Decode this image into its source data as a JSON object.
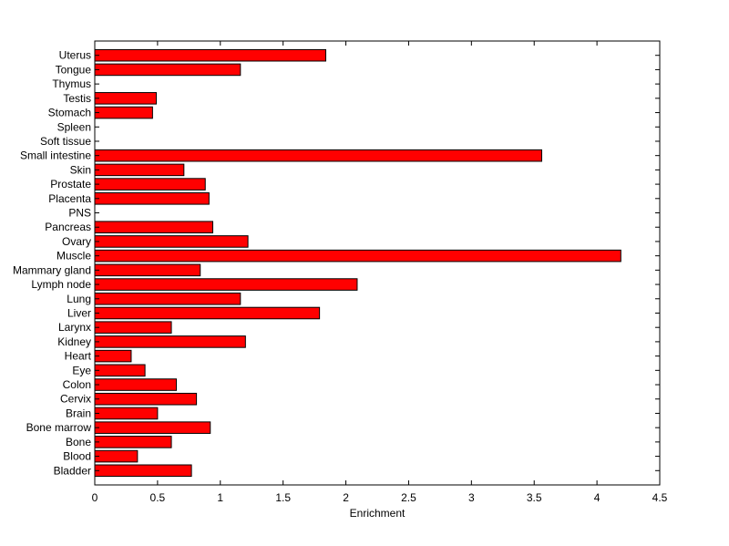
{
  "chart_data": {
    "type": "bar",
    "orientation": "horizontal",
    "title": "",
    "xlabel": "Enrichment",
    "ylabel": "",
    "xlim": [
      0,
      4.5
    ],
    "xticks": [
      "0",
      "0.5",
      "1",
      "1.5",
      "2",
      "2.5",
      "3",
      "3.5",
      "4",
      "4.5"
    ],
    "categories": [
      "Uterus",
      "Tongue",
      "Thymus",
      "Testis",
      "Stomach",
      "Spleen",
      "Soft tissue",
      "Small intestine",
      "Skin",
      "Prostate",
      "Placenta",
      "PNS",
      "Pancreas",
      "Ovary",
      "Muscle",
      "Mammary gland",
      "Lymph node",
      "Lung",
      "Liver",
      "Larynx",
      "Kidney",
      "Heart",
      "Eye",
      "Colon",
      "Cervix",
      "Brain",
      "Bone marrow",
      "Bone",
      "Blood",
      "Bladder"
    ],
    "values": [
      1.84,
      1.16,
      0,
      0.49,
      0.46,
      0,
      0,
      3.56,
      0.71,
      0.88,
      0.91,
      0,
      0.94,
      1.22,
      4.19,
      0.84,
      2.09,
      1.16,
      1.79,
      0.61,
      1.2,
      0.29,
      0.4,
      0.65,
      0.81,
      0.5,
      0.92,
      0.61,
      0.34,
      0.77
    ],
    "bar_color": "#ff0000",
    "grid": false,
    "legend": "none"
  }
}
